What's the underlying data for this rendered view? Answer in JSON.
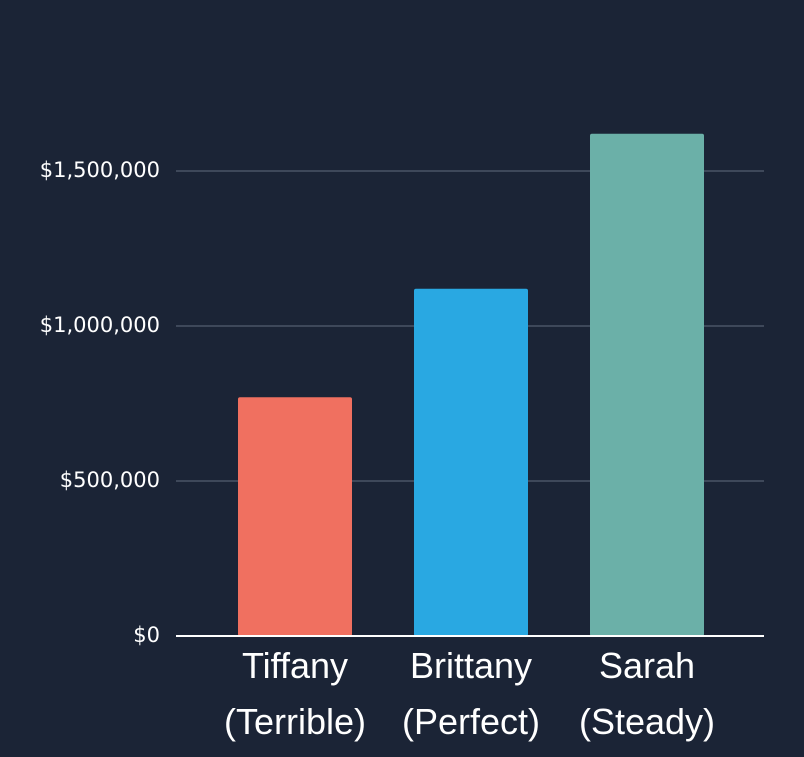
{
  "chart_data": {
    "type": "bar",
    "categories": [
      [
        "Tiffany",
        "(Terrible)"
      ],
      [
        "Brittany",
        "(Perfect)"
      ],
      [
        "Sarah",
        "(Steady)"
      ]
    ],
    "values": [
      770000,
      1120000,
      1620000
    ],
    "colors": [
      "#f07060",
      "#29a8e2",
      "#6bb0a8"
    ],
    "ylim": [
      0,
      2000000
    ],
    "yticks": [
      {
        "value": 0,
        "label": "$0"
      },
      {
        "value": 500000,
        "label": "$500,000"
      },
      {
        "value": 1000000,
        "label": "$1,000,000"
      },
      {
        "value": 1500000,
        "label": "$1,500,000"
      }
    ],
    "grid": true
  }
}
